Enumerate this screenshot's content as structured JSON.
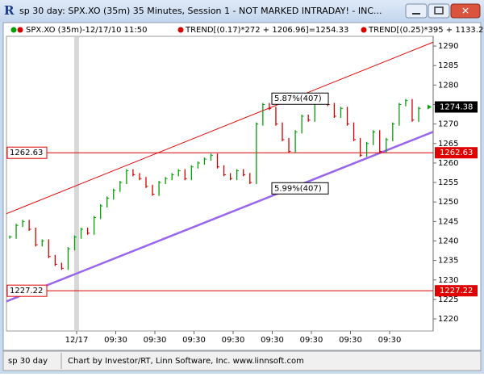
{
  "window": {
    "title": "sp 30 day: SPX.XO (35m) 35 Minutes, Session 1 - NOT MARKED INTRADAY! - INC...",
    "status_left": "sp 30 day",
    "status_text": "Chart by Investor/RT, Linn Software, Inc. www.linnsoft.com"
  },
  "legend": [
    "SPX.XO (35m)-12/17/10 11:50",
    "TREND[(0.17)*272 + 1206.96]=1254.33",
    "TREND[(0.25)*395 + 1133.2"
  ],
  "chart_data": {
    "type": "ohlc",
    "values": [
      1241,
      1244,
      1245,
      1243,
      1239,
      1240,
      1236,
      1234,
      1233,
      1238,
      1241,
      1243,
      1242,
      1246,
      1249,
      1251,
      1253,
      1255,
      1258,
      1257,
      1256,
      1254,
      1252,
      1255,
      1256,
      1257,
      1258,
      1256,
      1259,
      1260,
      1261,
      1262,
      1259,
      1257,
      1256,
      1258,
      1257,
      1255,
      1270,
      1275,
      1274,
      1270,
      1266,
      1263,
      1268,
      1272,
      1271,
      1276,
      1277,
      1275,
      1272,
      1274,
      1270,
      1266,
      1262,
      1265,
      1268,
      1263,
      1266,
      1270,
      1275,
      1276,
      1271,
      1274
    ],
    "up_color": "#00a000",
    "down_color": "#d00000",
    "ylim": [
      1216.9,
      1292.5
    ],
    "yticks": [
      1220,
      1225,
      1230,
      1235,
      1240,
      1245,
      1250,
      1255,
      1260,
      1265,
      1270,
      1275,
      1280,
      1285,
      1290
    ],
    "xticks": [
      "12/17",
      "09:30",
      "09:30",
      "09:30",
      "09:30",
      "09:30",
      "09:30",
      "09:30",
      "09:30"
    ],
    "last": 1274.38,
    "levels": [
      1262.63,
      1227.22
    ],
    "level_color": "#e00000",
    "trend_lines": [
      {
        "color": "#e00000",
        "start": 1247,
        "end": 1291
      },
      {
        "color": "#9966ee",
        "start": 1224.5,
        "end": 1268
      }
    ],
    "annotations": [
      {
        "text": "5.87%(407)",
        "value": 1276.5
      },
      {
        "text": "5.99%(407)",
        "value": 1253.5
      }
    ]
  }
}
